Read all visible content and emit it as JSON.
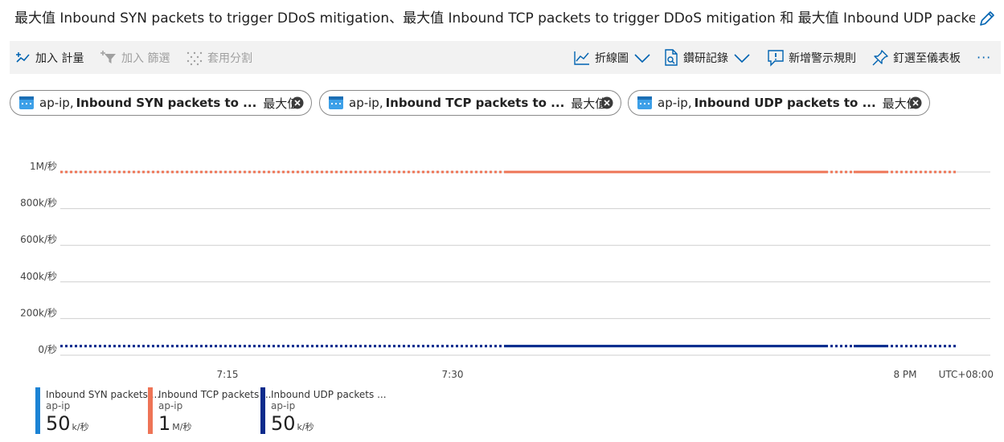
{
  "title": "最大值 Inbound SYN packets to trigger DDoS mitigation、最大值 Inbound TCP packets to trigger DDoS mitigation 和 最大值 Inbound UDP packets t...",
  "toolbar": {
    "add_metric": "加入 計量",
    "add_filter": "加入 篩選",
    "apply_split": "套用分割",
    "line_chart": "折線圖",
    "drill_logs": "鑽研記錄",
    "new_alert": "新增警示規則",
    "pin_dashboard": "釘選至儀表板",
    "more": "···"
  },
  "pills": [
    {
      "resource": "ap-ip,",
      "metric": "Inbound SYN packets to ...",
      "aggregation": "最大值"
    },
    {
      "resource": "ap-ip,",
      "metric": "Inbound TCP packets to ...",
      "aggregation": "最大值"
    },
    {
      "resource": "ap-ip,",
      "metric": "Inbound UDP packets to ...",
      "aggregation": "最大值"
    }
  ],
  "colors": {
    "syn": "#1c83d4",
    "tcp": "#ee7456",
    "udp": "#0c2b8c",
    "accent": "#0063b1"
  },
  "chart_data": {
    "type": "line",
    "y_ticks": [
      "1M/秒",
      "800k/秒",
      "600k/秒",
      "400k/秒",
      "200k/秒",
      "0/秒"
    ],
    "y_tick_values": [
      1000000,
      800000,
      600000,
      400000,
      200000,
      0
    ],
    "ylim": [
      0,
      1000000
    ],
    "x_ticks": [
      "7:15",
      "7:30",
      "8 PM"
    ],
    "timezone": "UTC+08:00",
    "grid": true,
    "series": [
      {
        "name": "Inbound SYN packets ...",
        "value": 50000,
        "color": "#1c83d4"
      },
      {
        "name": "Inbound TCP packets ...",
        "value": 1000000,
        "color": "#ee7456"
      },
      {
        "name": "Inbound UDP packets ...",
        "value": 50000,
        "color": "#0c2b8c"
      }
    ]
  },
  "legend": [
    {
      "name": "Inbound SYN packets ...",
      "resource": "ap-ip",
      "value": "50",
      "unit": "k/秒"
    },
    {
      "name": "Inbound TCP packets ...",
      "resource": "ap-ip",
      "value": "1",
      "unit": "M/秒"
    },
    {
      "name": "Inbound UDP packets ...",
      "resource": "ap-ip",
      "value": "50",
      "unit": "k/秒"
    }
  ]
}
